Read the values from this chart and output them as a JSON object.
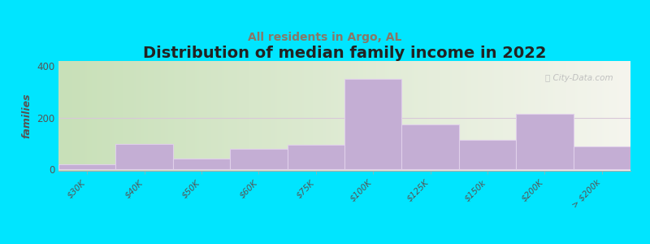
{
  "title": "Distribution of median family income in 2022",
  "subtitle": "All residents in Argo, AL",
  "ylabel": "families",
  "categories": [
    "$30K",
    "$40K",
    "$50K",
    "$60K",
    "$75K",
    "$100K",
    "$125K",
    "$150k",
    "$200K",
    "> $200k"
  ],
  "values": [
    20,
    100,
    42,
    80,
    95,
    350,
    175,
    115,
    215,
    90
  ],
  "bar_color": "#c4aed4",
  "bar_edge_color": "#e0d0ea",
  "background_outer": "#00e5ff",
  "background_grad_left": "#c8e0b8",
  "background_grad_right": "#f5f5ee",
  "grid_color": "#d8c8d8",
  "yticks": [
    0,
    200,
    400
  ],
  "ylim": [
    -5,
    420
  ],
  "title_fontsize": 14,
  "subtitle_fontsize": 10,
  "ylabel_fontsize": 9,
  "watermark_text": "ⓘ City-Data.com"
}
